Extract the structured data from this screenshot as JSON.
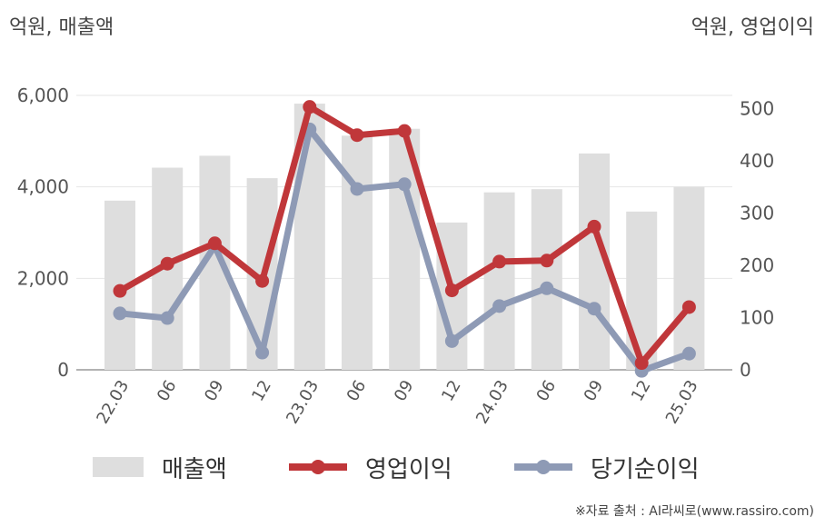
{
  "units": {
    "left": "억원, 매출액",
    "right": "억원, 영업이익"
  },
  "source": "※자료 출처 : AI라씨로(www.rassiro.com)",
  "colors": {
    "bar": "#dedede",
    "operating_profit": "#c0373a",
    "net_income": "#8e9ab5",
    "grid": "#e6e6e6",
    "axis": "#999999"
  },
  "chart_data": {
    "type": "bar",
    "categories": [
      "22.03",
      "06",
      "09",
      "12",
      "23.03",
      "06",
      "09",
      "12",
      "24.03",
      "06",
      "09",
      "12",
      "25.03"
    ],
    "y_left": {
      "ticks": [
        "0",
        "2,000",
        "4,000",
        "6,000"
      ],
      "range": [
        0,
        6000
      ]
    },
    "y_right": {
      "ticks": [
        "0",
        "100",
        "200",
        "300",
        "400",
        "500"
      ],
      "range": [
        0,
        525
      ]
    },
    "series": [
      {
        "name": "매출액",
        "type": "bar",
        "axis": "left",
        "values": [
          3700,
          4420,
          4680,
          4190,
          5820,
          5120,
          5270,
          3220,
          3880,
          3950,
          4730,
          3460,
          4000
        ]
      },
      {
        "name": "영업이익",
        "type": "line",
        "axis": "right",
        "values": [
          151,
          203,
          242,
          170,
          503,
          449,
          457,
          152,
          207,
          209,
          274,
          13,
          120
        ]
      },
      {
        "name": "당기순이익",
        "type": "line",
        "axis": "right",
        "values": [
          108,
          99,
          237,
          33,
          460,
          346,
          355,
          55,
          122,
          156,
          117,
          -2,
          31
        ]
      }
    ],
    "grid": true,
    "legend_position": "bottom"
  }
}
